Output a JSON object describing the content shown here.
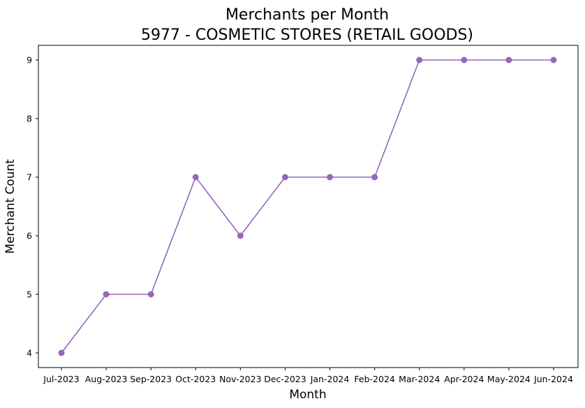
{
  "chart_data": {
    "type": "line",
    "title_line1": "Merchants per Month",
    "title_line2": "5977 - COSMETIC STORES (RETAIL GOODS)",
    "xlabel": "Month",
    "ylabel": "Merchant Count",
    "categories": [
      "Jul-2023",
      "Aug-2023",
      "Sep-2023",
      "Oct-2023",
      "Nov-2023",
      "Dec-2023",
      "Jan-2024",
      "Feb-2024",
      "Mar-2024",
      "Apr-2024",
      "May-2024",
      "Jun-2024"
    ],
    "series": [
      {
        "values": [
          4,
          5,
          5,
          7,
          6,
          7,
          7,
          7,
          9,
          9,
          9,
          9
        ]
      }
    ],
    "yticks": [
      4,
      5,
      6,
      7,
      8,
      9
    ],
    "ylim": [
      3.75,
      9.25
    ],
    "grid": false,
    "legend": "none",
    "colors": {
      "line": "#9467bd",
      "marker": "#9467bd",
      "axis": "#000000"
    },
    "marker": "circle"
  }
}
